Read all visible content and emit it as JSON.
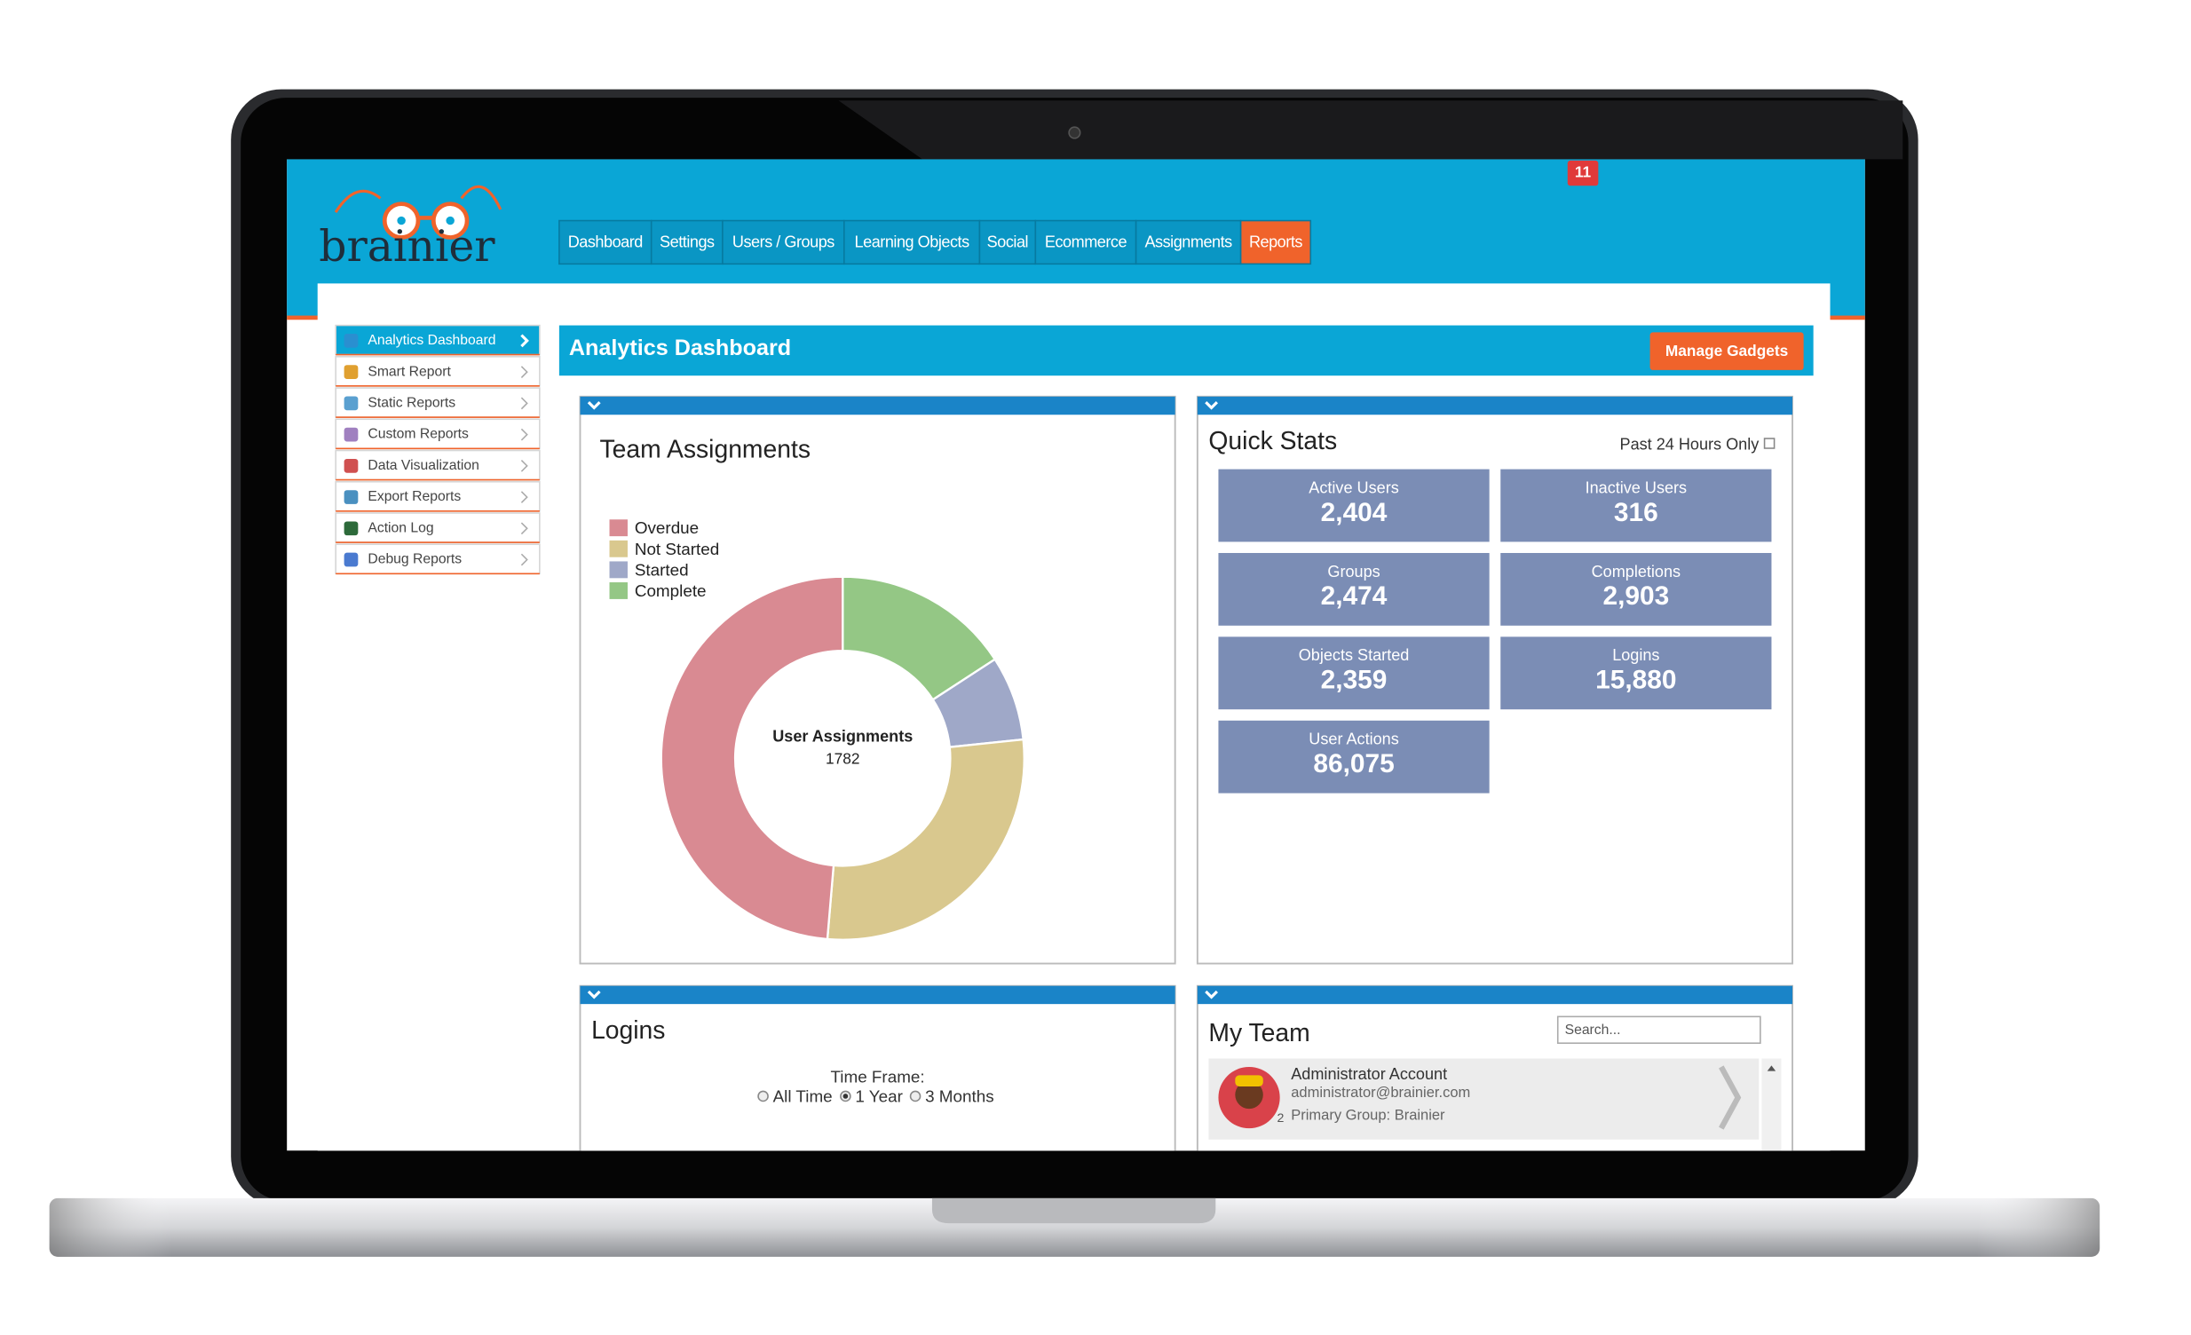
{
  "header": {
    "logo": "brainier",
    "notification_count": "11",
    "nav": [
      "Dashboard",
      "Settings",
      "Users / Groups",
      "Learning Objects",
      "Social",
      "Ecommerce",
      "Assignments",
      "Reports"
    ],
    "active_nav": 7
  },
  "sidebar": {
    "items": [
      "Analytics Dashboard",
      "Smart Report",
      "Static Reports",
      "Custom Reports",
      "Data Visualization",
      "Export Reports",
      "Action Log",
      "Debug Reports"
    ],
    "active": 0
  },
  "page": {
    "title": "Analytics Dashboard",
    "button": "Manage Gadgets"
  },
  "chart_data": {
    "type": "pie",
    "title": "Team Assignments",
    "categories": [
      "Overdue",
      "Not Started",
      "Started",
      "Complete"
    ],
    "values": [
      867,
      499,
      134,
      282
    ],
    "colors": [
      "#d98a92",
      "#d9c88e",
      "#9fa8c8",
      "#94c785"
    ],
    "center_label": "User Assignments",
    "center_value": "1782"
  },
  "quick_stats": {
    "title": "Quick Stats",
    "filter": "Past 24 Hours Only",
    "stats": [
      {
        "label": "Active Users",
        "value": "2,404"
      },
      {
        "label": "Inactive Users",
        "value": "316"
      },
      {
        "label": "Groups",
        "value": "2,474"
      },
      {
        "label": "Completions",
        "value": "2,903"
      },
      {
        "label": "Objects Started",
        "value": "2,359"
      },
      {
        "label": "Logins",
        "value": "15,880"
      },
      {
        "label": "User Actions",
        "value": "86,075"
      }
    ]
  },
  "logins": {
    "title": "Logins",
    "time_frame_label": "Time Frame:",
    "options": [
      "All Time",
      "1 Year",
      "3 Months"
    ],
    "selected": 1
  },
  "my_team": {
    "title": "My Team",
    "search_placeholder": "Search...",
    "members": [
      {
        "name": "Administrator Account",
        "email": "administrator@brainier.com",
        "group": "Primary Group: Brainier",
        "badge": "2"
      }
    ]
  }
}
